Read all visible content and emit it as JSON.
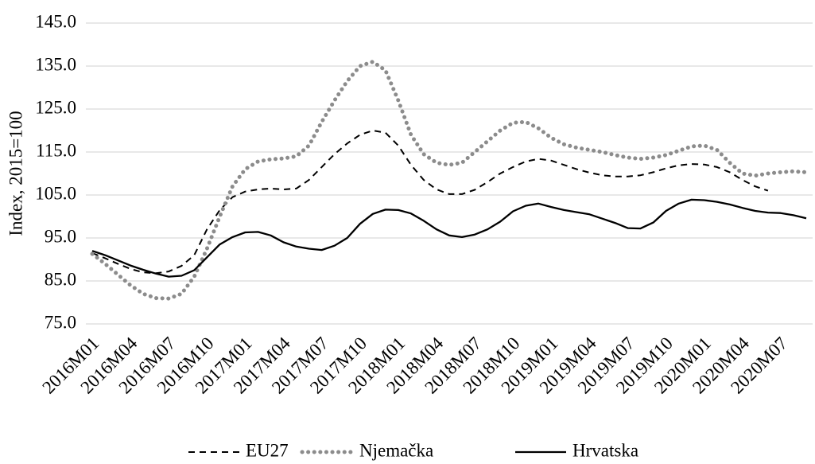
{
  "chart_data": {
    "type": "line",
    "y_axis_label": "Index, 2015=100",
    "categories": [
      "2016M01",
      null,
      null,
      "2016M04",
      null,
      null,
      "2016M07",
      null,
      null,
      "2016M10",
      null,
      null,
      "2017M01",
      null,
      null,
      "2017M04",
      null,
      null,
      "2017M07",
      null,
      null,
      "2017M10",
      null,
      null,
      "2018M01",
      null,
      null,
      "2018M04",
      null,
      null,
      "2018M07",
      null,
      null,
      "2018M10",
      null,
      null,
      "2019M01",
      null,
      null,
      "2019M04",
      null,
      null,
      "2019M07",
      null,
      null,
      "2019M10",
      null,
      null,
      "2020M01",
      null,
      null,
      "2020M04",
      null,
      null,
      "2020M07",
      null,
      null
    ],
    "series": [
      {
        "name": "EU27",
        "color": "#000000",
        "style": "dashed",
        "values": [
          91.5,
          90.3,
          89,
          87.8,
          87,
          86.8,
          87.2,
          88.5,
          91,
          97,
          101.5,
          104.5,
          105.8,
          106.3,
          106.5,
          106.3,
          106.5,
          108.5,
          111.5,
          114.5,
          117,
          119,
          120,
          119.5,
          116.5,
          112,
          108.5,
          106.3,
          105.2,
          105.2,
          106.2,
          108,
          110,
          111.5,
          112.8,
          113.4,
          113,
          112,
          111,
          110.2,
          109.6,
          109.3,
          109.3,
          109.6,
          110.3,
          111.2,
          111.9,
          112.2,
          112.1,
          111.5,
          110.3,
          108.5,
          107,
          106,
          null,
          null,
          null
        ]
      },
      {
        "name": "Njemačka",
        "color": "#8c8c8c",
        "style": "dotted",
        "values": [
          91.3,
          89,
          86.5,
          84,
          82,
          81,
          80.9,
          82,
          86,
          92.5,
          100,
          107,
          111,
          112.8,
          113.3,
          113.5,
          114,
          116.5,
          122,
          127,
          131.5,
          135,
          136,
          134,
          127,
          119,
          114.5,
          112.5,
          112,
          112.5,
          115,
          117.5,
          120,
          121.8,
          122,
          120.5,
          118.3,
          116.8,
          116,
          115.5,
          115,
          114.3,
          113.7,
          113.4,
          113.7,
          114.3,
          115.3,
          116.3,
          116.5,
          115.5,
          112.5,
          110,
          109.5,
          110,
          110.3,
          110.5,
          110.3
        ]
      },
      {
        "name": "Hrvatska",
        "color": "#000000",
        "style": "solid",
        "values": [
          92,
          91,
          89.8,
          88.6,
          87.6,
          86.7,
          86,
          86.2,
          87.5,
          90.5,
          93.5,
          95.2,
          96.3,
          96.4,
          95.6,
          94,
          93,
          92.5,
          92.2,
          93.2,
          95,
          98.3,
          100.6,
          101.6,
          101.5,
          100.7,
          99,
          97,
          95.6,
          95.2,
          95.8,
          97,
          98.8,
          101.2,
          102.5,
          103,
          102.2,
          101.5,
          101,
          100.5,
          99.5,
          98.5,
          97.3,
          97.2,
          98.6,
          101.3,
          103,
          103.9,
          103.8,
          103.4,
          102.8,
          102,
          101.3,
          100.9,
          100.8,
          100.3,
          99.6
        ]
      }
    ],
    "ylim": [
      75,
      145
    ],
    "yticks": [
      {
        "value": 75,
        "label": "75.0"
      },
      {
        "value": 85,
        "label": "85.0"
      },
      {
        "value": 95,
        "label": "95.0"
      },
      {
        "value": 105,
        "label": "105.0"
      },
      {
        "value": 115,
        "label": "115.0"
      },
      {
        "value": 125,
        "label": "125.0"
      },
      {
        "value": 135,
        "label": "135.0"
      },
      {
        "value": 145,
        "label": "145.0"
      }
    ],
    "grid": true,
    "legend": "bottom"
  }
}
